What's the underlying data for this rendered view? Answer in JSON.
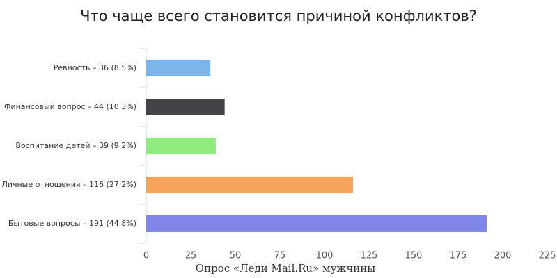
{
  "chart_data": {
    "type": "bar",
    "orientation": "horizontal",
    "title": "Что чаще всего становится причиной конфликтов?",
    "x_axis_title": "Опрос «Леди Mail.Ru» мужчины",
    "categories": [
      "Ревность – 36 (8.5%)",
      "Финансовый вопрос – 44 (10.3%)",
      "Воспитание детей – 39 (9.2%)",
      "Личные отношения – 116 (27.2%)",
      "Бытовые вопросы – 191 (44.8%)"
    ],
    "values": [
      36,
      44,
      39,
      116,
      191
    ],
    "colors": [
      "#7cb5ec",
      "#434348",
      "#90ed7d",
      "#f7a35c",
      "#8085e9"
    ],
    "xlim": [
      0,
      225
    ],
    "xticks": [
      0,
      25,
      50,
      75,
      100,
      125,
      150,
      175,
      200,
      225
    ],
    "grid": false
  }
}
